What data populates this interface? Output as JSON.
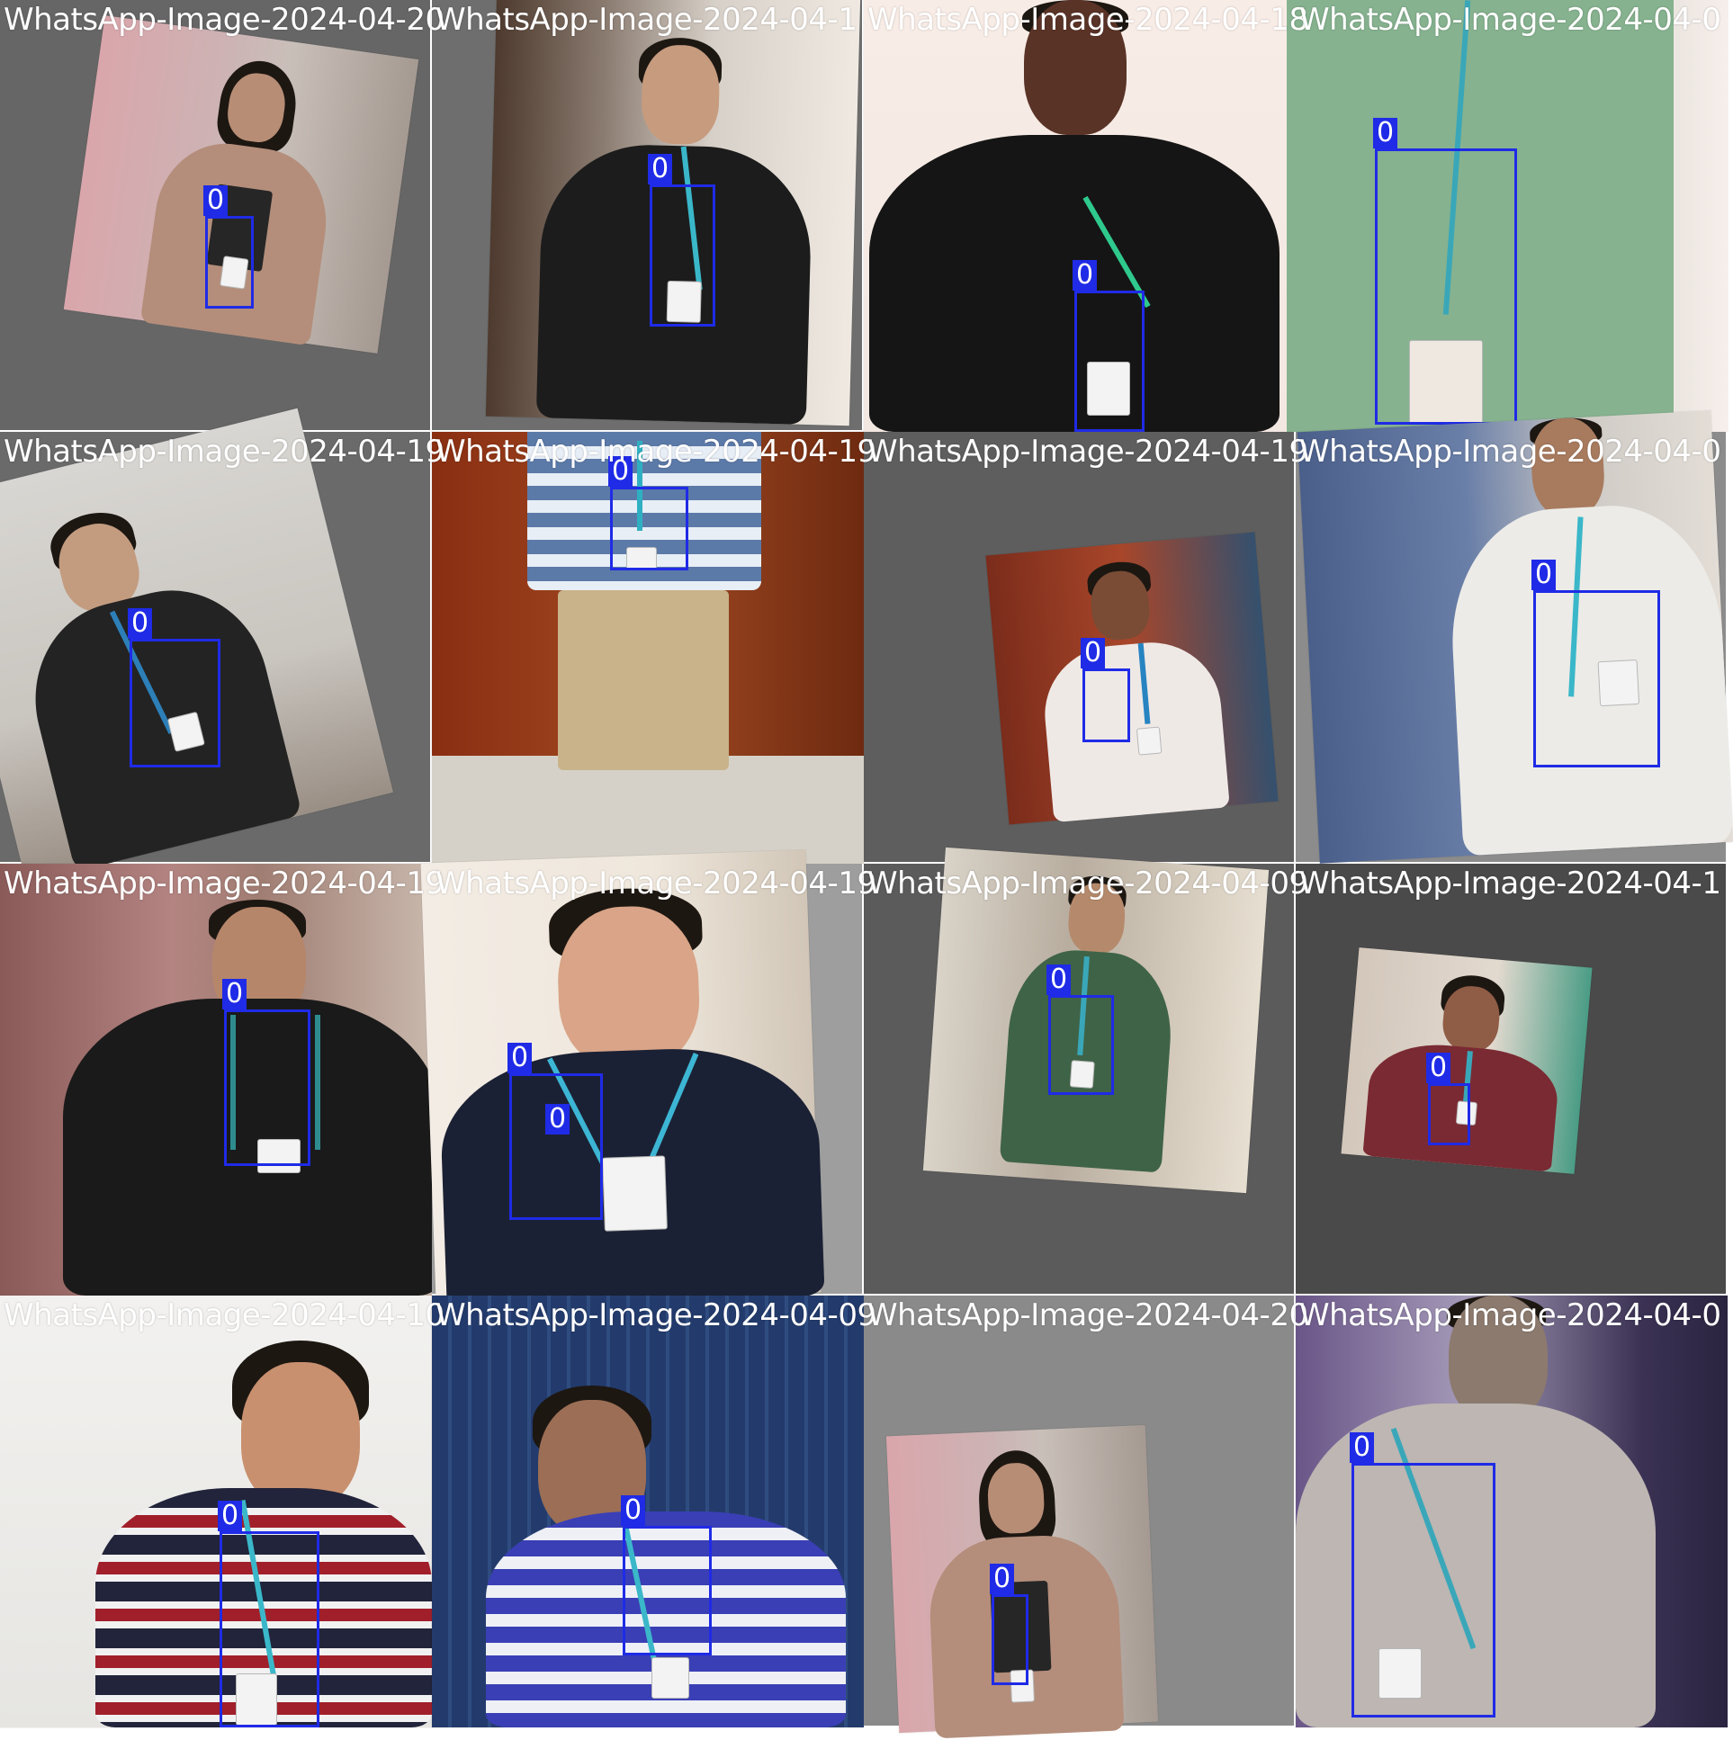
{
  "colors": {
    "box": "#1f2be6",
    "label_bg": "#1f2be6",
    "label_text": "#ffffff",
    "filename_text": "#ffffff"
  },
  "tiles": [
    {
      "filename": "WhatsApp-Image-2024-04-20",
      "boxes": [
        {
          "label": "0"
        }
      ]
    },
    {
      "filename": "WhatsApp-Image-2024-04-1",
      "boxes": [
        {
          "label": "0"
        }
      ]
    },
    {
      "filename": "WhatsApp-Image-2024-04-18",
      "boxes": [
        {
          "label": "0"
        }
      ]
    },
    {
      "filename": "WhatsApp-Image-2024-04-0",
      "boxes": [
        {
          "label": "0"
        }
      ]
    },
    {
      "filename": "WhatsApp-Image-2024-04-19",
      "boxes": [
        {
          "label": "0"
        }
      ]
    },
    {
      "filename": "WhatsApp-Image-2024-04-19",
      "boxes": [
        {
          "label": "0"
        }
      ]
    },
    {
      "filename": "WhatsApp-Image-2024-04-19",
      "boxes": [
        {
          "label": "0"
        }
      ]
    },
    {
      "filename": "WhatsApp-Image-2024-04-0",
      "boxes": [
        {
          "label": "0"
        }
      ]
    },
    {
      "filename": "WhatsApp-Image-2024-04-19",
      "boxes": [
        {
          "label": "0"
        }
      ]
    },
    {
      "filename": "WhatsApp-Image-2024-04-19",
      "boxes": [
        {
          "label": "0"
        },
        {
          "label": "0"
        }
      ]
    },
    {
      "filename": "WhatsApp-Image-2024-04-09",
      "boxes": [
        {
          "label": "0"
        }
      ]
    },
    {
      "filename": "WhatsApp-Image-2024-04-1",
      "boxes": [
        {
          "label": "0"
        }
      ]
    },
    {
      "filename": "WhatsApp-Image-2024-04-10",
      "boxes": [
        {
          "label": "0"
        }
      ]
    },
    {
      "filename": "WhatsApp-Image-2024-04-09",
      "boxes": [
        {
          "label": "0"
        }
      ]
    },
    {
      "filename": "WhatsApp-Image-2024-04-20",
      "boxes": [
        {
          "label": "0"
        }
      ]
    },
    {
      "filename": "WhatsApp-Image-2024-04-0",
      "boxes": [
        {
          "label": "0"
        }
      ]
    }
  ]
}
